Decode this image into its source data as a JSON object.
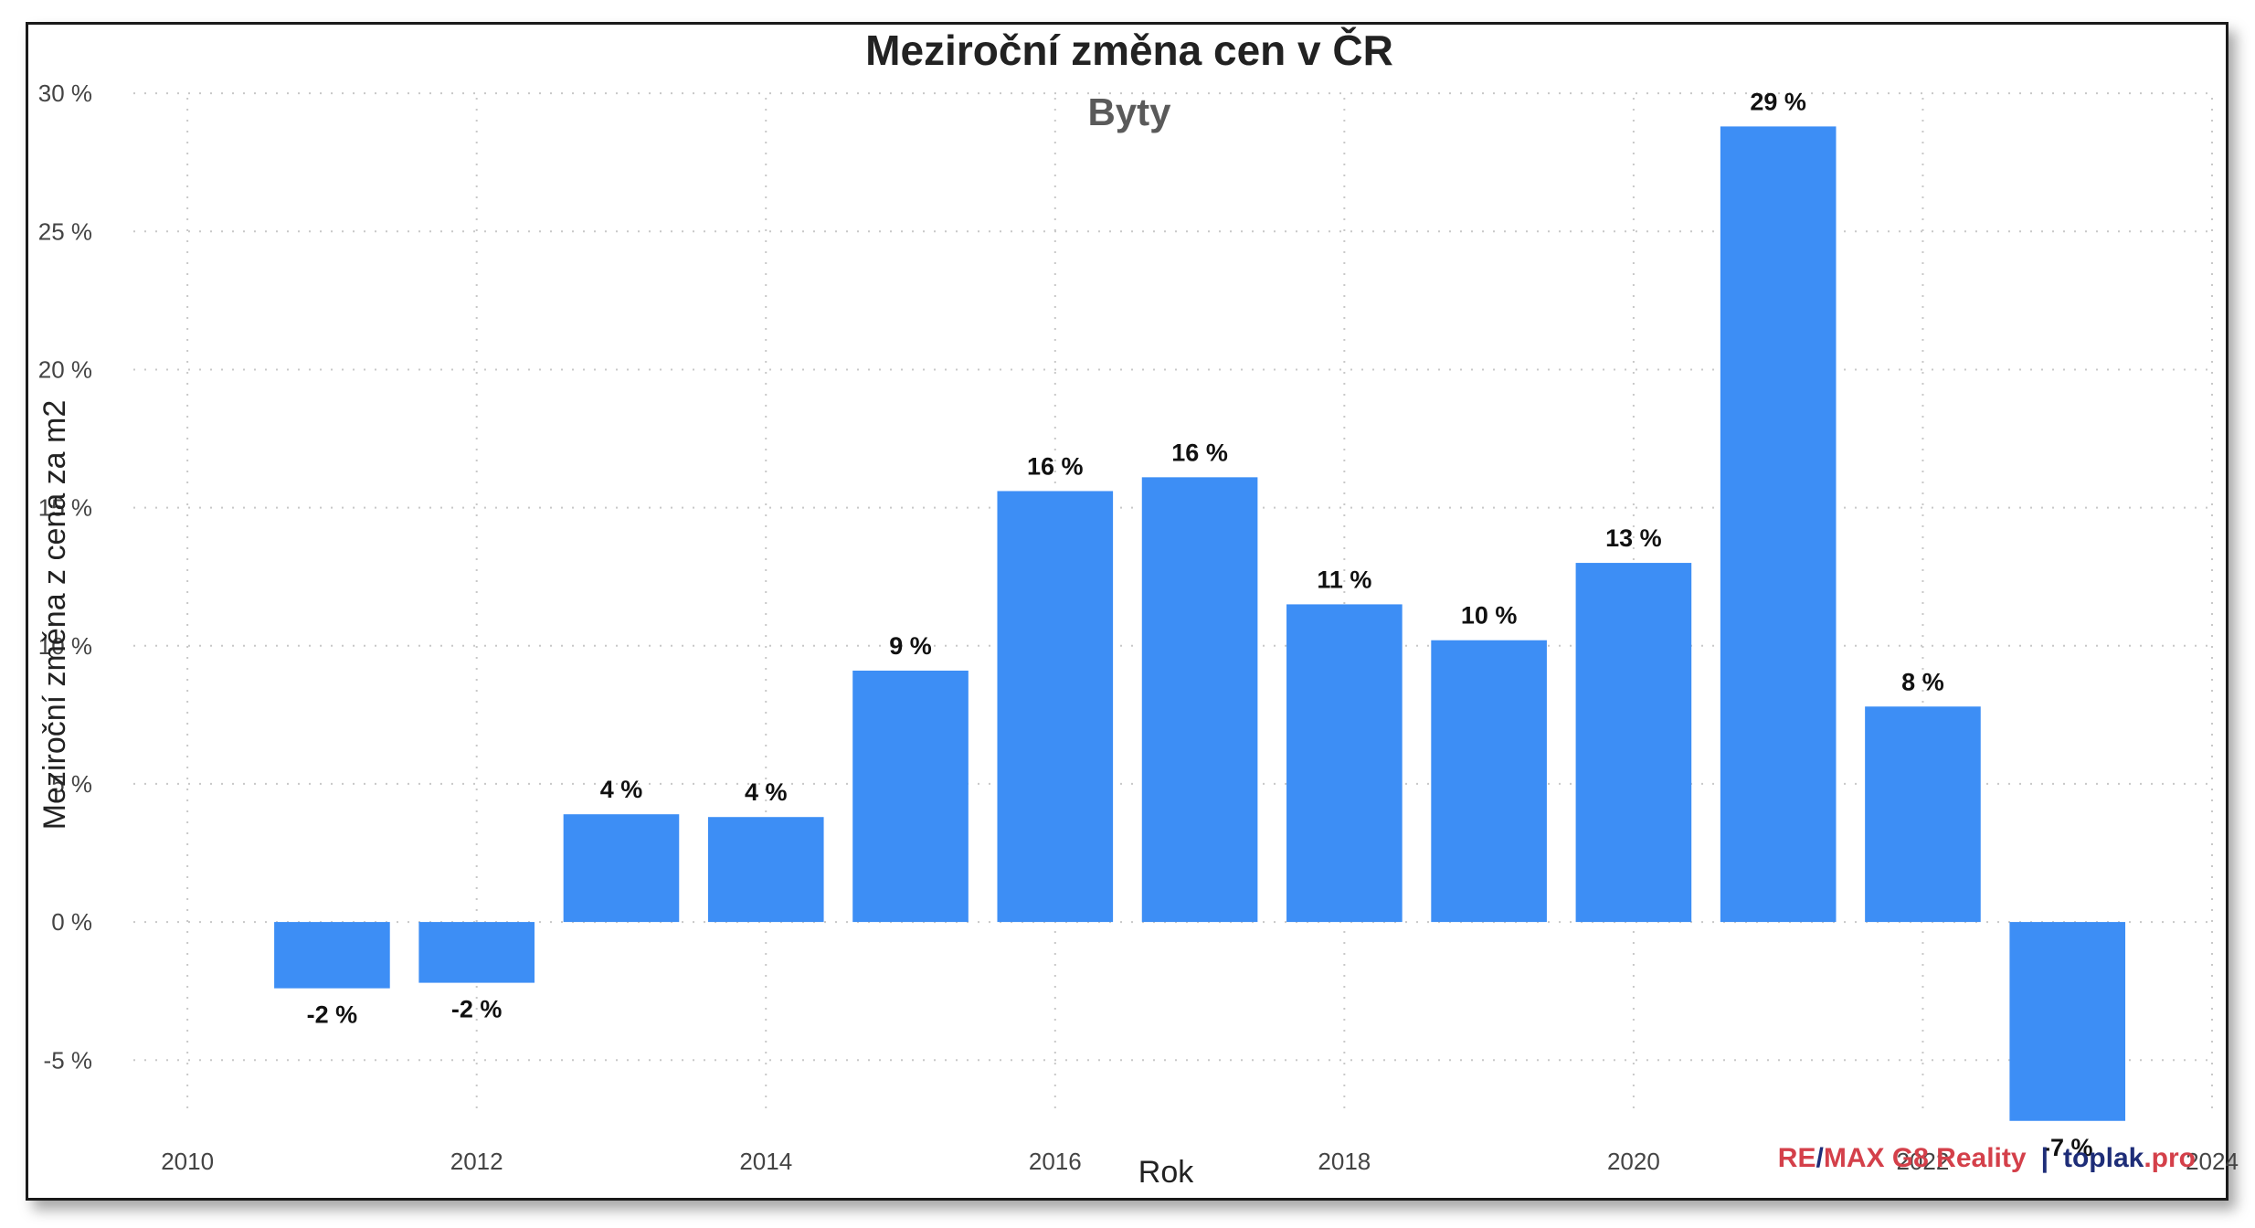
{
  "chart_data": {
    "type": "bar",
    "title": "Meziroční změna cen v ČR",
    "subtitle": "Byty",
    "xlabel": "Rok",
    "ylabel": "Meziroční změna z cena za m2",
    "x_ticks": [
      "2010",
      "2012",
      "2014",
      "2016",
      "2018",
      "2020",
      "2022",
      "2024"
    ],
    "y_ticks": [
      "30 %",
      "25 %",
      "20 %",
      "15 %",
      "10 %",
      "5 %",
      "0 %",
      "-5 %"
    ],
    "xlim": [
      2009.5,
      2024
    ],
    "ylim": [
      -8.2,
      30.5
    ],
    "x": [
      2011,
      2012,
      2013,
      2014,
      2015,
      2016,
      2017,
      2018,
      2019,
      2020,
      2021,
      2022,
      2023
    ],
    "values": [
      -2.4,
      -2.2,
      3.9,
      3.8,
      9.1,
      15.6,
      16.1,
      11.5,
      10.2,
      13.0,
      28.8,
      7.8,
      -7.2
    ],
    "data_labels": [
      "-2 %",
      "-2 %",
      "4 %",
      "4 %",
      "9 %",
      "16 %",
      "16 %",
      "11 %",
      "10 %",
      "13 %",
      "29 %",
      "8 %",
      "-7 %"
    ],
    "bar_color": "#3d8ef5",
    "grid": true
  },
  "credit": {
    "remax_re": "RE",
    "slash": "/",
    "remax_rest": "MAX G8 Reality",
    "separator": "|",
    "toplak": "toplak",
    "pro": ".pro",
    "red_color": "#d4404a",
    "navy_color": "#1e2d78"
  }
}
